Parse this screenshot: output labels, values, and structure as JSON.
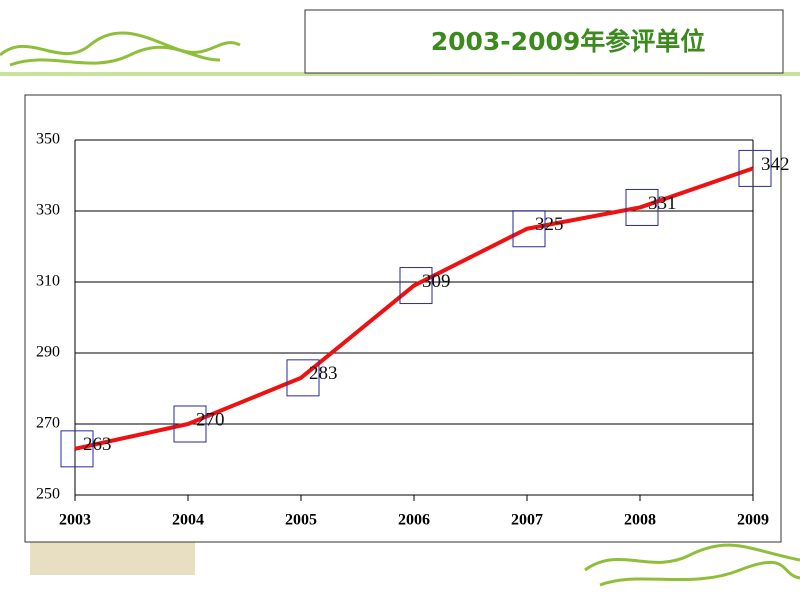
{
  "chart_data": {
    "type": "line",
    "title": "2003-2009年参评单位",
    "categories": [
      "2003",
      "2004",
      "2005",
      "2006",
      "2007",
      "2008",
      "2009"
    ],
    "values": [
      263,
      270,
      283,
      309,
      325,
      331,
      342
    ],
    "color": "#ee1111",
    "marker_color": "#2a2a9a",
    "ylim": [
      250,
      350
    ],
    "yticks": [
      250,
      270,
      290,
      310,
      330,
      350
    ],
    "grid": true
  }
}
